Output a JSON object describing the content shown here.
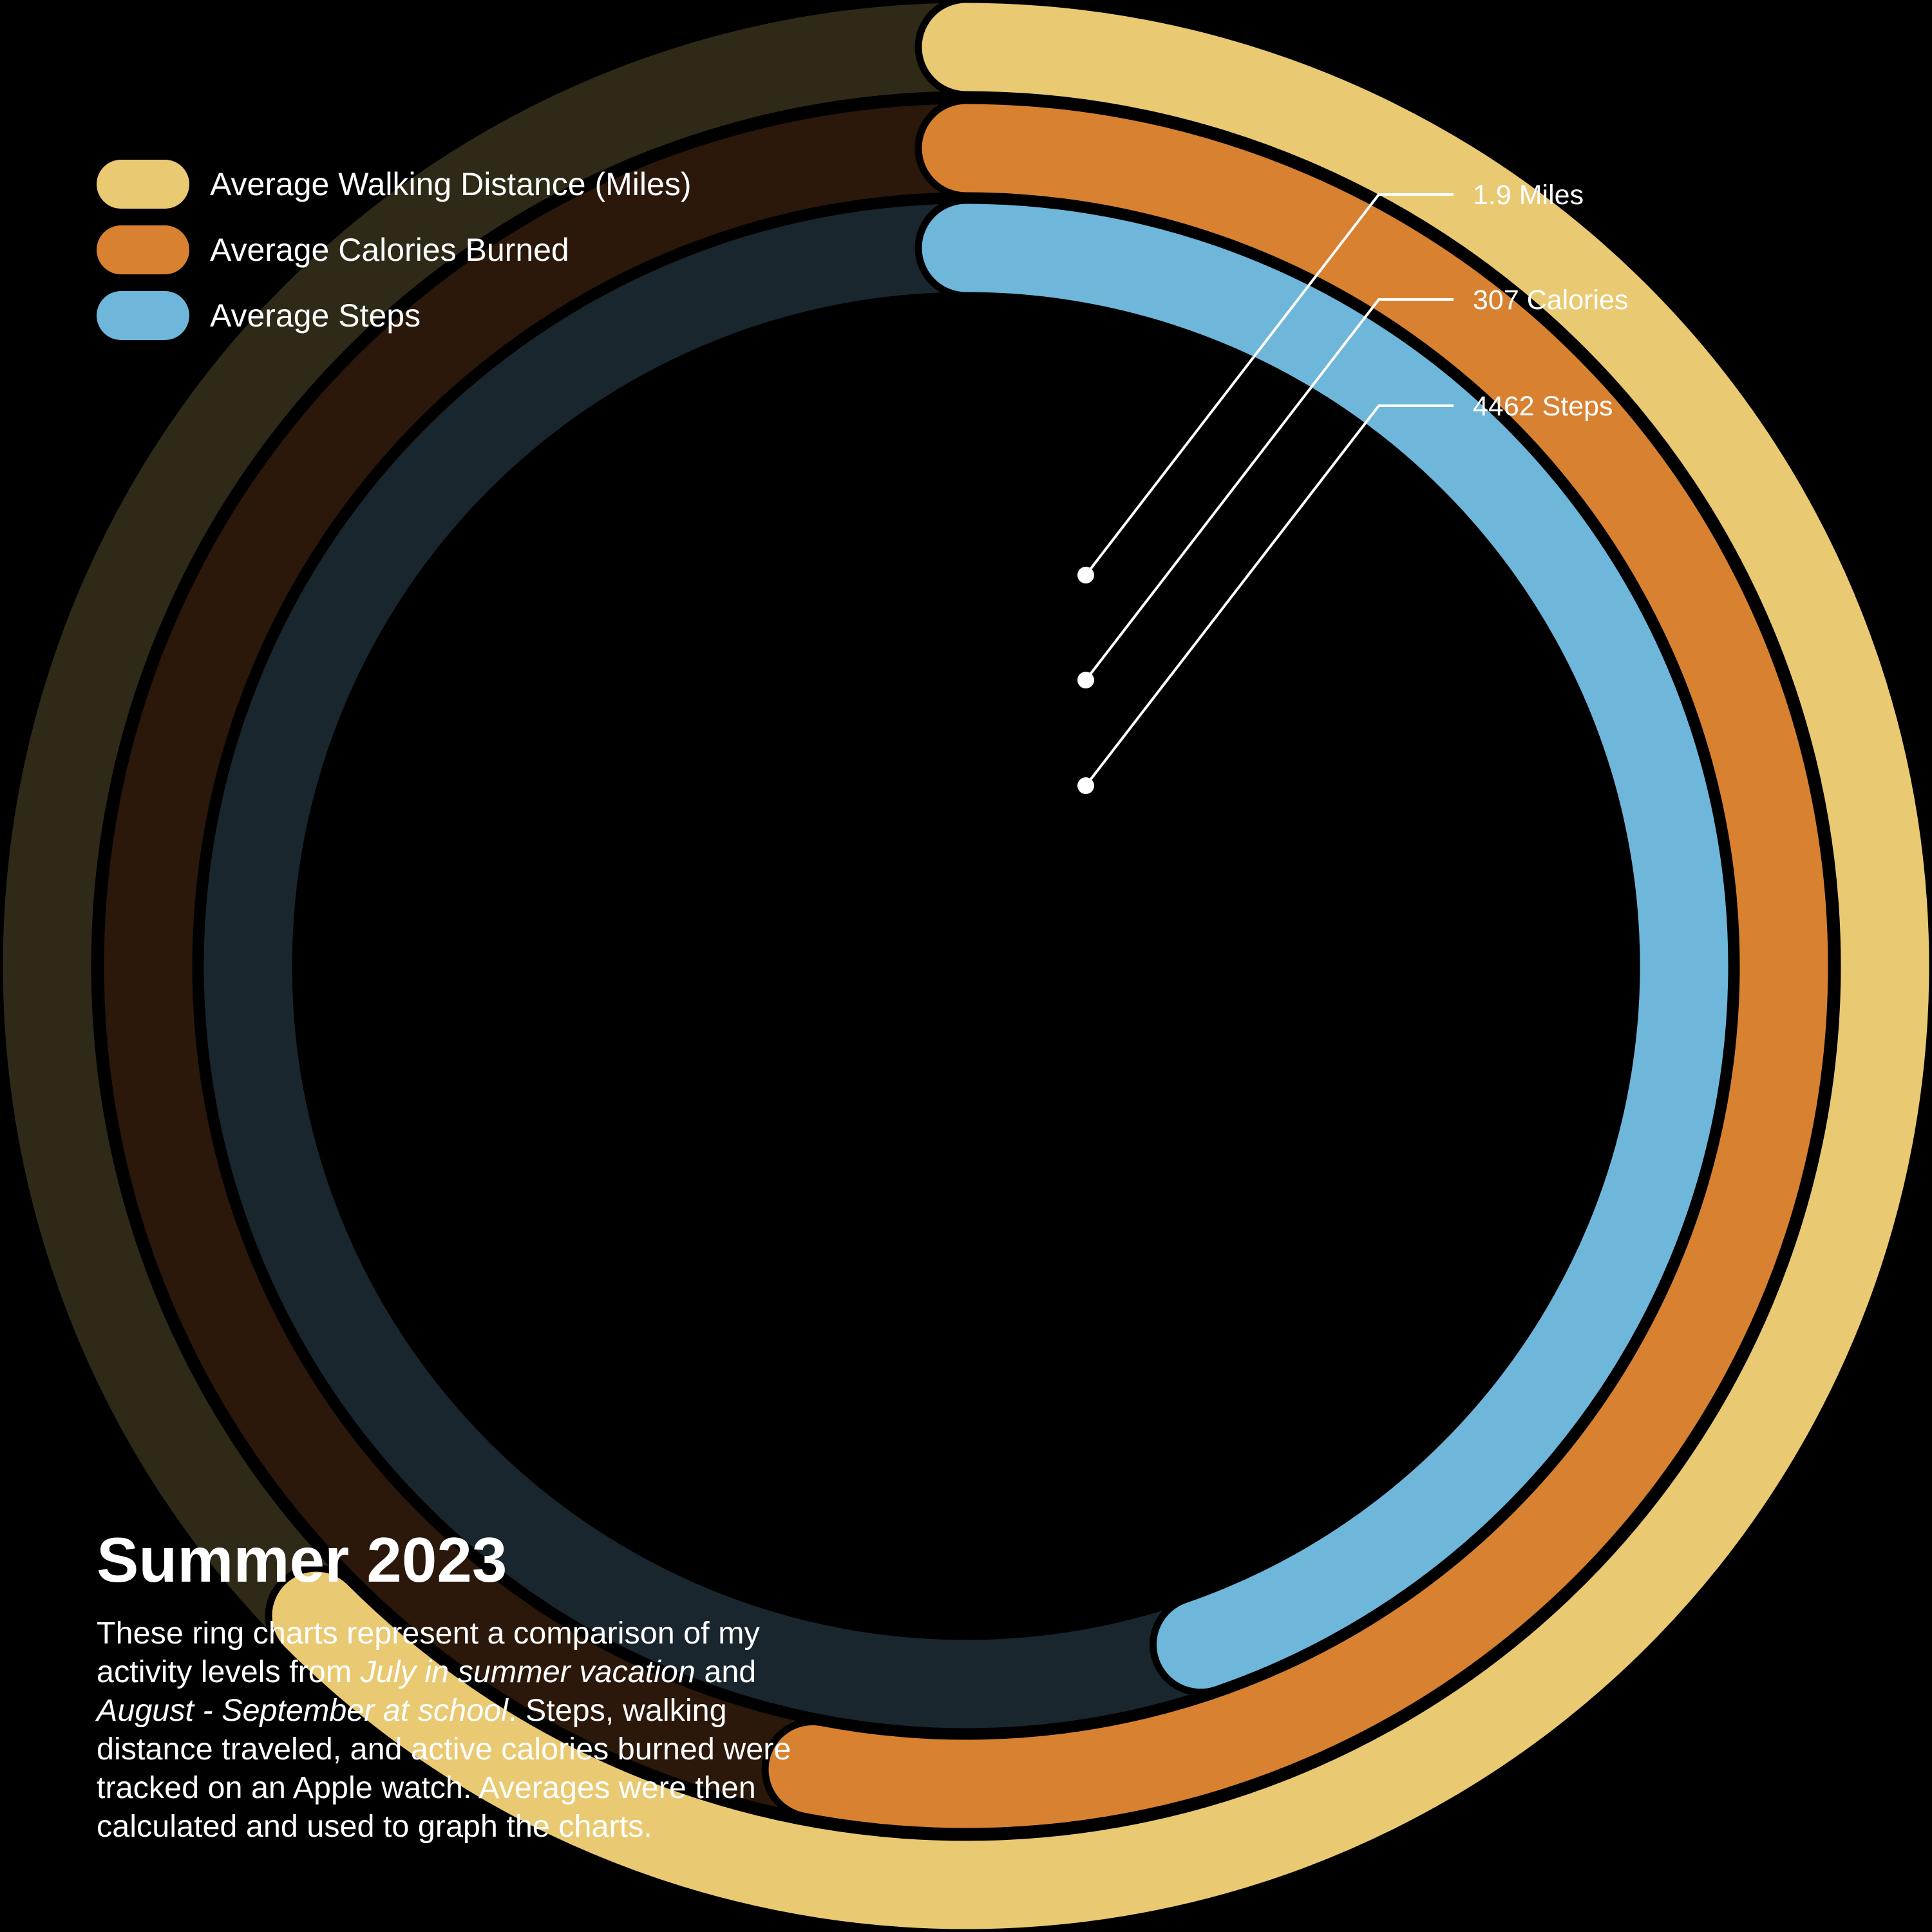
{
  "legend": [
    {
      "label": "Average Walking Distance (Miles)",
      "color": "#E9C972"
    },
    {
      "label": "Average Calories Burned",
      "color": "#D88131"
    },
    {
      "label": "Average Steps",
      "color": "#6EB6DA"
    }
  ],
  "chart_data": {
    "type": "radial-bar",
    "title": "Summer 2023",
    "series": [
      {
        "name": "Average Walking Distance (Miles)",
        "label": "1.9 Miles",
        "value": 1.9,
        "fill_fraction": 0.625,
        "color": "#E9C972",
        "track_color": "#2F2918"
      },
      {
        "name": "Average Calories Burned",
        "label": "307 Calories",
        "value": 307,
        "fill_fraction": 0.53,
        "color": "#D88131",
        "track_color": "#2B180B"
      },
      {
        "name": "Average Steps",
        "label": "4462 Steps",
        "value": 4462,
        "fill_fraction": 0.447,
        "color": "#6EB6DA",
        "track_color": "#19262E"
      }
    ]
  },
  "title": "Summer 2023",
  "description": {
    "part1": "These ring charts represent a comparison of my activity levels from ",
    "italic1": "July in summer vacation",
    "part2": " and ",
    "italic2": "August - September at school",
    "part3": ". Steps, walking distance traveled, and active calories burned were tracked on an Apple watch. Averages were then calculated and used to graph the charts."
  }
}
